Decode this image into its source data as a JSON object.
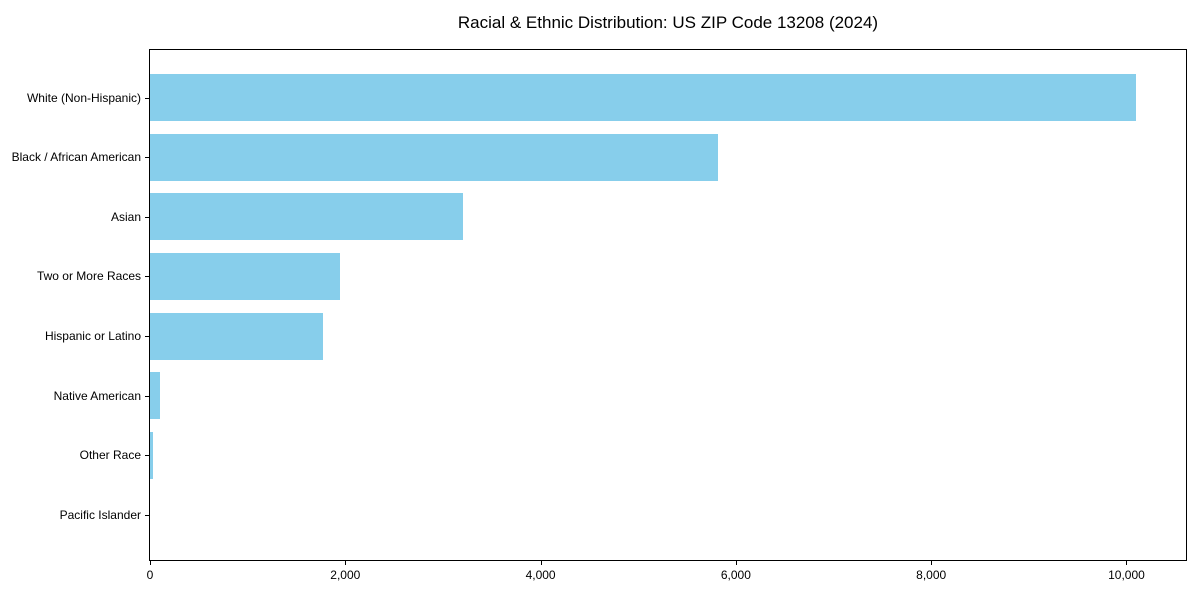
{
  "chart_data": {
    "type": "bar",
    "orientation": "horizontal",
    "title": "Racial & Ethnic Distribution: US ZIP Code 13208 (2024)",
    "categories": [
      "White (Non-Hispanic)",
      "Black / African American",
      "Asian",
      "Two or More Races",
      "Hispanic or Latino",
      "Native American",
      "Other Race",
      "Pacific Islander"
    ],
    "values": [
      10100,
      5820,
      3210,
      1950,
      1770,
      100,
      30,
      0
    ],
    "xlabel": "",
    "ylabel": "",
    "xlim": [
      0,
      10630
    ],
    "xticks": [
      0,
      2000,
      4000,
      6000,
      8000,
      10000
    ],
    "xtick_labels": [
      "0",
      "2,000",
      "4,000",
      "6,000",
      "8,000",
      "10,000"
    ],
    "bar_color": "#87CEEB",
    "spine_color": "#000000",
    "grid": false,
    "legend": false
  }
}
